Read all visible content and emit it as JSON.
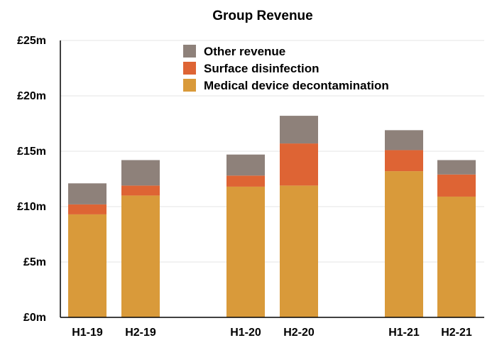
{
  "chart_data": {
    "type": "bar",
    "stacked": true,
    "title": "Group Revenue",
    "categories": [
      "H1-19",
      "H2-19",
      "H1-20",
      "H2-20",
      "H1-21",
      "H2-21"
    ],
    "series": [
      {
        "name": "Medical device decontamination",
        "color": "#D99A3A",
        "values": [
          9.3,
          11.0,
          11.8,
          11.9,
          13.2,
          10.9
        ]
      },
      {
        "name": "Surface disinfection",
        "color": "#DE6434",
        "values": [
          0.9,
          0.9,
          1.0,
          3.8,
          1.9,
          2.0
        ]
      },
      {
        "name": "Other revenue",
        "color": "#8E817A",
        "values": [
          1.9,
          2.3,
          1.9,
          2.5,
          1.8,
          1.3
        ]
      }
    ],
    "yticks": [
      "£0m",
      "£5m",
      "£10m",
      "£15m",
      "£20m",
      "£25m"
    ],
    "ylim": [
      0,
      25
    ],
    "grid": true,
    "legend_position": "top-center"
  }
}
